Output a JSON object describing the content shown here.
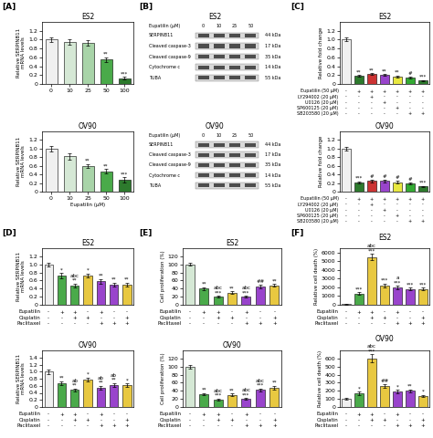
{
  "chart_data": [
    {
      "type": "bar",
      "panel": "[A]",
      "title": "ES2",
      "ylabel": "Relative SERPINB11\nmRNA levels",
      "categories": [
        "0",
        "10",
        "25",
        "50",
        "100"
      ],
      "values": [
        1.0,
        0.95,
        0.92,
        0.55,
        0.13
      ],
      "yerr": [
        0.05,
        0.06,
        0.06,
        0.05,
        0.03
      ],
      "colors": [
        "#f0f0f0",
        "#d5e8d5",
        "#a8d4a8",
        "#4aaa4a",
        "#2d7a2d"
      ],
      "annotations": [
        null,
        null,
        null,
        "**",
        "***"
      ],
      "ylim": [
        0,
        1.4
      ],
      "yticks": [
        0,
        0.2,
        0.4,
        0.6,
        0.8,
        1.0,
        1.2
      ]
    },
    {
      "type": "bar",
      "title": "OV90",
      "xlabel": "Eupatilin (μM)",
      "ylabel": "Relative SERPINB11\nmRNA levels",
      "categories": [
        "0",
        "10",
        "25",
        "50",
        "100"
      ],
      "values": [
        1.0,
        0.82,
        0.6,
        0.47,
        0.27
      ],
      "yerr": [
        0.06,
        0.08,
        0.04,
        0.05,
        0.06
      ],
      "colors": [
        "#f0f0f0",
        "#d5e8d5",
        "#a8d4a8",
        "#4aaa4a",
        "#2d7a2d"
      ],
      "annotations": [
        null,
        null,
        "**",
        "**",
        "***"
      ],
      "ylim": [
        0,
        1.4
      ],
      "yticks": [
        0,
        0.2,
        0.4,
        0.6,
        0.8,
        1.0,
        1.2
      ]
    },
    {
      "type": "blot",
      "panel": "[B]",
      "title": "ES2",
      "xlabel": "Eupatilin (μM)",
      "categories": [
        "0",
        "10",
        "25",
        "50"
      ],
      "rows": [
        "SERPINB11",
        "Cleaved caspase-3",
        "Cleaved caspase-9",
        "Cytochrome c",
        "TUBA"
      ],
      "row_labels": [
        "44 kDa",
        "17 kDa",
        "35 kDa",
        "14 kDa",
        "55 kDa"
      ]
    },
    {
      "type": "blot",
      "title": "OV90",
      "xlabel": "Eupatilin (μM)",
      "categories": [
        "0",
        "10",
        "25",
        "50"
      ],
      "rows": [
        "SERPINB11",
        "Cleaved caspase-3",
        "Cleaved caspase-9",
        "Cytochrome c",
        "TUBA"
      ],
      "row_labels": [
        "44 kDa",
        "17 kDa",
        "35 kDa",
        "14 kDa",
        "55 kDa"
      ]
    },
    {
      "type": "bar",
      "panel": "[C]",
      "title": "ES2",
      "ylabel": "Relative fold change",
      "categories": [
        null,
        null,
        null,
        null,
        null,
        null,
        null
      ],
      "values": [
        1.0,
        0.18,
        0.22,
        0.2,
        0.17,
        0.15,
        0.08
      ],
      "yerr": [
        0.04,
        0.02,
        0.02,
        0.02,
        0.02,
        0.02,
        0.01
      ],
      "colors": [
        "#f0f0f0",
        "#2d7a2d",
        "#cc3333",
        "#9944cc",
        "#e8e840",
        "#33aa33",
        "#2d7a2d"
      ],
      "annotations": [
        null,
        "**",
        "**",
        "**",
        "**",
        "#",
        "***"
      ],
      "ylim": [
        0,
        1.4
      ],
      "yticks": [
        0,
        0.2,
        0.4,
        0.6,
        0.8,
        1.0,
        1.2
      ],
      "table": [
        {
          "label": "Eupatilin (50 μM)",
          "values": [
            "-",
            "+",
            "+",
            "+",
            "+",
            "+",
            "+"
          ]
        },
        {
          "label": "LY294002 (20 μM)",
          "values": [
            "-",
            "-",
            "+",
            "-",
            "-",
            "-",
            "-"
          ]
        },
        {
          "label": "U0126 (20 μM)",
          "values": [
            "-",
            "-",
            "-",
            "+",
            "-",
            "-",
            "-"
          ]
        },
        {
          "label": "SP600125 (20 μM)",
          "values": [
            "-",
            "-",
            "-",
            "-",
            "+",
            "-",
            "-"
          ]
        },
        {
          "label": "SB203580 (20 μM)",
          "values": [
            "-",
            "-",
            "-",
            "-",
            "-",
            "+",
            "+"
          ]
        }
      ]
    },
    {
      "type": "bar",
      "title": "OV90",
      "ylabel": "Relative fold change",
      "categories": [
        null,
        null,
        null,
        null,
        null,
        null,
        null
      ],
      "values": [
        1.0,
        0.22,
        0.25,
        0.25,
        0.22,
        0.2,
        0.12
      ],
      "yerr": [
        0.05,
        0.02,
        0.03,
        0.03,
        0.03,
        0.02,
        0.01
      ],
      "colors": [
        "#f0f0f0",
        "#2d7a2d",
        "#cc3333",
        "#9944cc",
        "#e8e840",
        "#33aa33",
        "#2d7a2d"
      ],
      "annotations": [
        null,
        "***",
        "#",
        "#",
        "#",
        "#",
        "***"
      ],
      "ylim": [
        0,
        1.4
      ],
      "yticks": [
        0,
        0.2,
        0.4,
        0.6,
        0.8,
        1.0,
        1.2
      ],
      "table": [
        {
          "label": "Eupatilin (50 μM)",
          "values": [
            "-",
            "+",
            "+",
            "+",
            "+",
            "+",
            "+"
          ]
        },
        {
          "label": "LY294002 (20 μM)",
          "values": [
            "-",
            "-",
            "+",
            "-",
            "-",
            "-",
            "-"
          ]
        },
        {
          "label": "U0126 (20 μM)",
          "values": [
            "-",
            "-",
            "-",
            "+",
            "-",
            "-",
            "-"
          ]
        },
        {
          "label": "SP600125 (20 μM)",
          "values": [
            "-",
            "-",
            "-",
            "-",
            "+",
            "-",
            "-"
          ]
        },
        {
          "label": "SB203580 (20 μM)",
          "values": [
            "-",
            "-",
            "-",
            "-",
            "-",
            "+",
            "+"
          ]
        }
      ]
    },
    {
      "type": "bar",
      "panel": "[D]",
      "title": "ES2",
      "ylabel": "Relative SERPINB11\nmRNA levels",
      "categories": [
        null,
        null,
        null,
        null,
        null,
        null,
        null
      ],
      "values": [
        1.0,
        0.72,
        0.48,
        0.72,
        0.58,
        0.5,
        0.5
      ],
      "yerr": [
        0.05,
        0.06,
        0.04,
        0.05,
        0.05,
        0.04,
        0.04
      ],
      "colors": [
        "#f0f0f0",
        "#4aaa4a",
        "#4aaa4a",
        "#e8c840",
        "#9944cc",
        "#9944cc",
        "#e8c840"
      ],
      "annotations": [
        null,
        "*",
        "abc\n**",
        "*",
        "**",
        "**",
        "**"
      ],
      "ylim": [
        0,
        1.4
      ],
      "yticks": [
        0,
        0.2,
        0.4,
        0.6,
        0.8,
        1.0,
        1.2
      ],
      "table": [
        {
          "label": "Eupatilin",
          "values": [
            "-",
            "+",
            "+",
            "-",
            "+",
            "-",
            "-"
          ]
        },
        {
          "label": "Cisplatin",
          "values": [
            "-",
            "-",
            "+",
            "+",
            "-",
            "-",
            "+"
          ]
        },
        {
          "label": "Paclitaxel",
          "values": [
            "-",
            "-",
            "-",
            "-",
            "+",
            "+",
            "+"
          ]
        }
      ]
    },
    {
      "type": "bar",
      "title": "OV90",
      "ylabel": "Relative SERPINB11\nmRNA levels",
      "categories": [
        null,
        null,
        null,
        null,
        null,
        null,
        null
      ],
      "values": [
        1.0,
        0.68,
        0.48,
        0.78,
        0.55,
        0.62,
        0.62
      ],
      "yerr": [
        0.06,
        0.05,
        0.04,
        0.05,
        0.05,
        0.05,
        0.04
      ],
      "colors": [
        "#f0f0f0",
        "#4aaa4a",
        "#4aaa4a",
        "#e8c840",
        "#9944cc",
        "#9944cc",
        "#e8c840"
      ],
      "annotations": [
        null,
        "**",
        "ab\n**",
        "*",
        "ab\n**",
        "ab\n**",
        "*"
      ],
      "ylim": [
        0,
        1.6
      ],
      "yticks": [
        0,
        0.2,
        0.4,
        0.6,
        0.8,
        1.0,
        1.2,
        1.4
      ],
      "table": [
        {
          "label": "Eupatilin",
          "values": [
            "-",
            "+",
            "+",
            "-",
            "+",
            "-",
            "-"
          ]
        },
        {
          "label": "Cisplatin",
          "values": [
            "-",
            "-",
            "+",
            "+",
            "-",
            "-",
            "+"
          ]
        },
        {
          "label": "Paclitaxel",
          "values": [
            "-",
            "-",
            "-",
            "-",
            "+",
            "+",
            "+"
          ]
        }
      ]
    },
    {
      "type": "bar",
      "panel": "[E]",
      "title": "ES2",
      "ylabel": "Cell proliferation (%)",
      "categories": [
        null,
        null,
        null,
        null,
        null,
        null,
        null
      ],
      "values": [
        100,
        40,
        20,
        30,
        20,
        45,
        48
      ],
      "yerr": [
        4,
        3,
        2,
        3,
        2,
        4,
        3
      ],
      "colors": [
        "#d5e8d5",
        "#4aaa4a",
        "#4aaa4a",
        "#e8c840",
        "#9944cc",
        "#9944cc",
        "#e8c840"
      ],
      "annotations": [
        null,
        "**",
        "abc\n***",
        "**",
        "abc\n***",
        "##",
        "**"
      ],
      "ylim": [
        0,
        140
      ],
      "yticks": [
        0,
        20,
        40,
        60,
        80,
        100,
        120
      ],
      "table": [
        {
          "label": "Eupatilin",
          "values": [
            "-",
            "+",
            "+",
            "-",
            "+",
            "-",
            "-"
          ]
        },
        {
          "label": "Cisplatin",
          "values": [
            "-",
            "-",
            "+",
            "+",
            "-",
            "-",
            "+"
          ]
        },
        {
          "label": "Paclitaxel",
          "values": [
            "-",
            "-",
            "-",
            "-",
            "+",
            "+",
            "+"
          ]
        }
      ]
    },
    {
      "type": "bar",
      "title": "OV90",
      "ylabel": "Cell proliferation (%)",
      "categories": [
        null,
        null,
        null,
        null,
        null,
        null,
        null
      ],
      "values": [
        100,
        32,
        18,
        30,
        20,
        42,
        48
      ],
      "yerr": [
        5,
        3,
        2,
        3,
        2,
        3,
        4
      ],
      "colors": [
        "#d5e8d5",
        "#4aaa4a",
        "#4aaa4a",
        "#e8c840",
        "#9944cc",
        "#9944cc",
        "#e8c840"
      ],
      "annotations": [
        null,
        "**",
        "abc\n***",
        "**",
        "abc\n***",
        "abc\n***",
        "**"
      ],
      "ylim": [
        0,
        140
      ],
      "yticks": [
        0,
        20,
        40,
        60,
        80,
        100,
        120
      ],
      "table": [
        {
          "label": "Eupatilin",
          "values": [
            "-",
            "+",
            "+",
            "-",
            "+",
            "-",
            "-"
          ]
        },
        {
          "label": "Cisplatin",
          "values": [
            "-",
            "-",
            "+",
            "+",
            "-",
            "-",
            "+"
          ]
        },
        {
          "label": "Paclitaxel",
          "values": [
            "-",
            "-",
            "-",
            "-",
            "+",
            "+",
            "+"
          ]
        }
      ]
    },
    {
      "type": "bar",
      "panel": "[F]",
      "title": "ES2",
      "ylabel": "Relative cell death (%)",
      "categories": [
        null,
        null,
        null,
        null,
        null,
        null,
        null
      ],
      "values": [
        100,
        1300,
        5500,
        2200,
        2000,
        1800,
        1800
      ],
      "yerr": [
        50,
        120,
        350,
        200,
        180,
        150,
        150
      ],
      "colors": [
        "#f0f0f0",
        "#4aaa4a",
        "#e8c840",
        "#e8c840",
        "#9944cc",
        "#9944cc",
        "#e8c840"
      ],
      "annotations": [
        null,
        "***",
        "abc\n***",
        "***",
        "a\n***",
        "***",
        "***"
      ],
      "ylim": [
        0,
        6500
      ],
      "yticks": [
        0,
        1000,
        2000,
        3000,
        4000,
        5000,
        6000
      ],
      "table": [
        {
          "label": "Eupatilin",
          "values": [
            "-",
            "+",
            "+",
            "-",
            "+",
            "-",
            "-"
          ]
        },
        {
          "label": "Cisplatin",
          "values": [
            "-",
            "-",
            "+",
            "+",
            "-",
            "-",
            "+"
          ]
        },
        {
          "label": "Paclitaxel",
          "values": [
            "-",
            "-",
            "-",
            "-",
            "+",
            "+",
            "+"
          ]
        }
      ]
    },
    {
      "type": "bar",
      "title": "OV90",
      "ylabel": "Relative cell death (%)",
      "categories": [
        null,
        null,
        null,
        null,
        null,
        null,
        null
      ],
      "values": [
        100,
        170,
        600,
        260,
        190,
        200,
        135
      ],
      "yerr": [
        10,
        18,
        50,
        25,
        20,
        18,
        12
      ],
      "colors": [
        "#f0f0f0",
        "#4aaa4a",
        "#e8c840",
        "#e8c840",
        "#9944cc",
        "#9944cc",
        "#e8c840"
      ],
      "annotations": [
        null,
        "*",
        "abc\n***",
        "##",
        "*",
        "**",
        "*"
      ],
      "ylim": [
        0,
        700
      ],
      "yticks": [
        0,
        100,
        200,
        300,
        400,
        500,
        600
      ],
      "table": [
        {
          "label": "Eupatilin",
          "values": [
            "-",
            "+",
            "+",
            "-",
            "+",
            "-",
            "-"
          ]
        },
        {
          "label": "Cisplatin",
          "values": [
            "-",
            "-",
            "+",
            "+",
            "-",
            "-",
            "+"
          ]
        },
        {
          "label": "Paclitaxel",
          "values": [
            "-",
            "-",
            "-",
            "-",
            "+",
            "+",
            "+"
          ]
        }
      ]
    }
  ]
}
